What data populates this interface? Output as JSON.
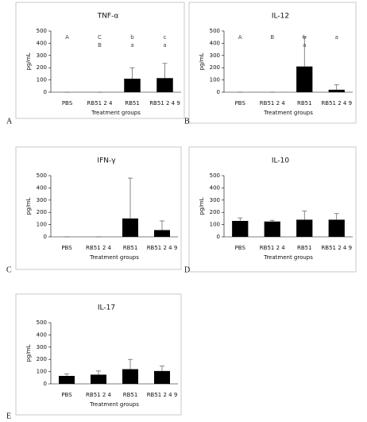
{
  "chart_data": [
    {
      "type": "bar",
      "panel_label": "A",
      "title": "TNF-α",
      "x_label": "Treatment groups",
      "y_label": "pg/mL",
      "categories": [
        "PBS",
        "RB51 2 4",
        "RB51",
        "RB51 2 4 9"
      ],
      "values": [
        0,
        0,
        110,
        115
      ],
      "errors": [
        0,
        0,
        90,
        120
      ],
      "annotations": [
        [
          "A"
        ],
        [
          "C",
          "B"
        ],
        [
          "b",
          "a"
        ],
        [
          "c",
          "a"
        ]
      ],
      "color": "#000000",
      "ylim": [
        0,
        500
      ],
      "yticks": [
        0,
        100,
        200,
        300,
        400,
        500
      ]
    },
    {
      "type": "bar",
      "panel_label": "B",
      "title": "IL-12",
      "x_label": "Treatment groups",
      "y_label": "pg/mL",
      "categories": [
        "PBS",
        "RB51 2 4",
        "RB51",
        "RB51 2 4 9"
      ],
      "values": [
        0,
        0,
        210,
        20
      ],
      "errors": [
        0,
        0,
        240,
        40
      ],
      "annotations": [
        [
          "A"
        ],
        [
          "B"
        ],
        [
          "b",
          "a"
        ],
        [
          "a"
        ]
      ],
      "color": "#000000",
      "ylim": [
        0,
        500
      ],
      "yticks": [
        0,
        100,
        200,
        300,
        400,
        500
      ]
    },
    {
      "type": "bar",
      "panel_label": "C",
      "title": "IFN-γ",
      "x_label": "Treatment groups",
      "y_label": "pg/mL",
      "categories": [
        "PBS",
        "RB51 2 4",
        "RB51",
        "RB51 2 4 9"
      ],
      "values": [
        0,
        0,
        150,
        55
      ],
      "errors": [
        0,
        0,
        330,
        75
      ],
      "color": "#000000",
      "ylim": [
        0,
        500
      ],
      "yticks": [
        0,
        100,
        200,
        300,
        400,
        500
      ]
    },
    {
      "type": "bar",
      "panel_label": "D",
      "title": "IL-10",
      "x_label": "Treatment groups",
      "y_label": "pg/mL",
      "categories": [
        "PBS",
        "RB51 2 4",
        "RB51",
        "RB51 2 4 9"
      ],
      "values": [
        130,
        125,
        140,
        140
      ],
      "errors": [
        25,
        10,
        70,
        50
      ],
      "color": "#000000",
      "ylim": [
        0,
        500
      ],
      "yticks": [
        0,
        100,
        200,
        300,
        400,
        500
      ]
    },
    {
      "type": "bar",
      "panel_label": "E",
      "title": "IL-17",
      "x_label": "Treatment groups",
      "y_label": "pg/mL",
      "categories": [
        "PBS",
        "RB51 2 4",
        "RB51",
        "RB51 2 4 9"
      ],
      "values": [
        65,
        75,
        120,
        105
      ],
      "errors": [
        15,
        30,
        80,
        40
      ],
      "color": "#000000",
      "ylim": [
        0,
        500
      ],
      "yticks": [
        0,
        100,
        200,
        300,
        400,
        500
      ]
    }
  ]
}
